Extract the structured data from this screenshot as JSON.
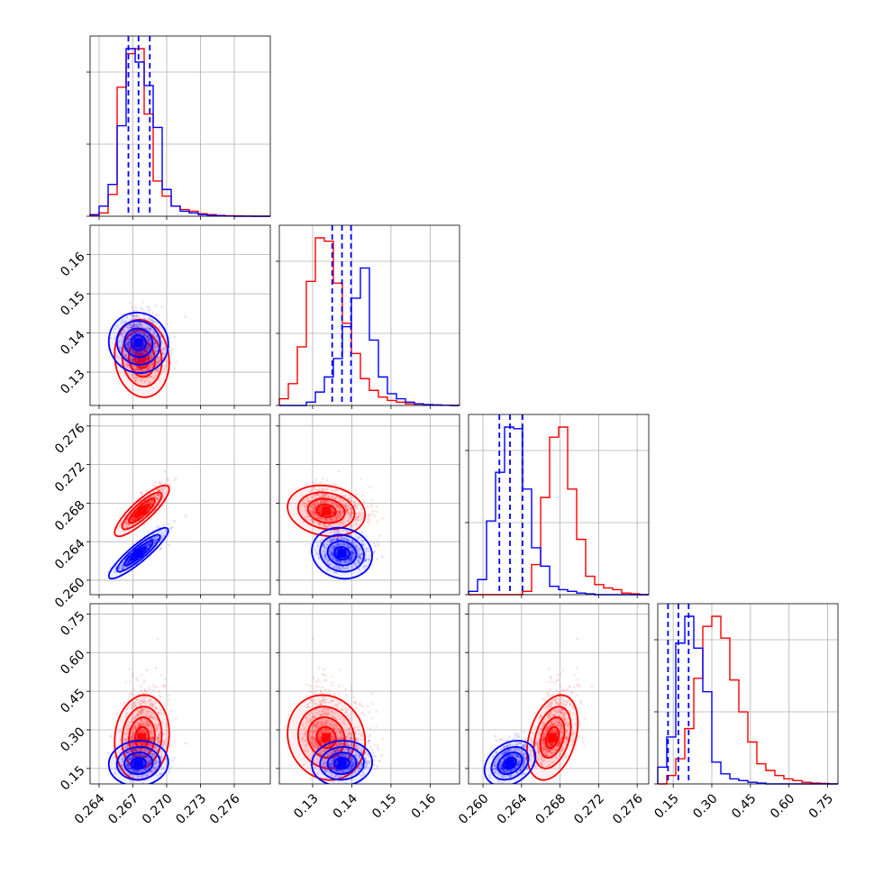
{
  "chart_data": {
    "type": "corner",
    "colors": {
      "red": "#ff0000",
      "blue": "#0000ff"
    },
    "parameters": [
      {
        "index": 0,
        "range": [
          0.2632,
          0.2792
        ],
        "ticks": [
          0.264,
          0.267,
          0.27,
          0.273,
          0.276
        ],
        "tick_labels": [
          "0.264",
          "0.267",
          "0.270",
          "0.273",
          "0.276"
        ]
      },
      {
        "index": 1,
        "range": [
          0.1215,
          0.1675
        ],
        "ticks": [
          0.13,
          0.14,
          0.15,
          0.16
        ],
        "tick_labels": [
          "0.13",
          "0.14",
          "0.15",
          "0.16"
        ]
      },
      {
        "index": 2,
        "range": [
          0.2585,
          0.2772
        ],
        "ticks": [
          0.26,
          0.264,
          0.268,
          0.272,
          0.276
        ],
        "tick_labels": [
          "0.260",
          "0.264",
          "0.268",
          "0.272",
          "0.276"
        ]
      },
      {
        "index": 3,
        "range": [
          0.09,
          0.79
        ],
        "ticks": [
          0.15,
          0.3,
          0.45,
          0.6,
          0.75
        ],
        "tick_labels": [
          "0.15",
          "0.30",
          "0.45",
          "0.60",
          "0.75"
        ]
      }
    ],
    "series": [
      {
        "color": "red",
        "mean": [
          0.2678,
          0.1335,
          0.2672,
          0.27
        ],
        "std": [
          0.0011,
          0.0045,
          0.0012,
          0.075
        ],
        "corr": [
          [
            1,
            -0.1,
            0.85,
            0.1
          ],
          [
            -0.1,
            1,
            -0.15,
            -0.1
          ],
          [
            0.85,
            -0.15,
            1,
            0.35
          ],
          [
            0.1,
            -0.1,
            0.35,
            1
          ]
        ],
        "skew": [
          1.2,
          1.4,
          1.3,
          1.6
        ],
        "hist": [
          [
            0.005,
            0.02,
            0.13,
            0.77,
            0.97,
            1.0,
            0.61,
            0.21,
            0.12,
            0.06,
            0.04,
            0.03,
            0.015,
            0.01,
            0.005,
            0.003,
            0.002,
            0.001,
            0.0,
            0.0
          ],
          [
            0.04,
            0.13,
            0.35,
            0.74,
            1.0,
            0.98,
            0.73,
            0.49,
            0.31,
            0.16,
            0.09,
            0.05,
            0.03,
            0.02,
            0.01,
            0.008,
            0.005,
            0.003,
            0.001,
            0.0
          ],
          [
            0.0,
            0.0,
            0.0,
            0.0,
            0.0,
            0.0,
            0.02,
            0.18,
            0.58,
            0.94,
            1.0,
            0.63,
            0.33,
            0.11,
            0.06,
            0.04,
            0.03,
            0.01,
            0.005,
            0.0
          ],
          [
            0.0,
            0.05,
            0.15,
            0.33,
            0.63,
            0.94,
            1.0,
            0.87,
            0.62,
            0.43,
            0.25,
            0.12,
            0.08,
            0.05,
            0.03,
            0.02,
            0.01,
            0.005,
            0.003,
            0.0
          ]
        ]
      },
      {
        "color": "blue",
        "mean": [
          0.2675,
          0.1375,
          0.2628,
          0.17
        ],
        "std": [
          0.0012,
          0.0035,
          0.0012,
          0.04
        ],
        "corr": [
          [
            1,
            -0.05,
            0.9,
            0.05
          ],
          [
            -0.05,
            1,
            -0.1,
            0.05
          ],
          [
            0.9,
            -0.1,
            1,
            0.3
          ],
          [
            0.05,
            0.05,
            0.3,
            1
          ]
        ],
        "skew": [
          1.2,
          1.2,
          1.2,
          1.3
        ],
        "hist": [
          [
            0.01,
            0.06,
            0.19,
            0.54,
            1.0,
            0.92,
            0.78,
            0.53,
            0.16,
            0.06,
            0.03,
            0.02,
            0.01,
            0.005,
            0.003,
            0.001,
            0.0,
            0.0,
            0.0,
            0.0
          ],
          [
            0.0,
            0.0,
            0.0,
            0.02,
            0.08,
            0.17,
            0.28,
            0.47,
            0.64,
            0.82,
            0.39,
            0.17,
            0.07,
            0.04,
            0.02,
            0.01,
            0.005,
            0.003,
            0.001,
            0.0
          ],
          [
            0.02,
            0.09,
            0.44,
            0.73,
            1.0,
            0.99,
            0.63,
            0.28,
            0.17,
            0.05,
            0.03,
            0.02,
            0.01,
            0.005,
            0.0,
            0.0,
            0.0,
            0.0,
            0.0,
            0.0
          ],
          [
            0.1,
            0.28,
            0.84,
            1.0,
            0.81,
            0.55,
            0.13,
            0.06,
            0.03,
            0.02,
            0.01,
            0.005,
            0.0,
            0.0,
            0.0,
            0.0,
            0.0,
            0.0,
            0.0,
            0.0
          ]
        ]
      }
    ],
    "quantile_lines": {
      "color": "blue",
      "style": "dashed",
      "values": [
        [
          0.2666,
          0.2675,
          0.2685
        ],
        [
          0.135,
          0.1375,
          0.1398
        ],
        [
          0.2617,
          0.2628,
          0.2641
        ],
        [
          0.13,
          0.17,
          0.21
        ]
      ]
    },
    "grid": true,
    "legend": "none"
  }
}
